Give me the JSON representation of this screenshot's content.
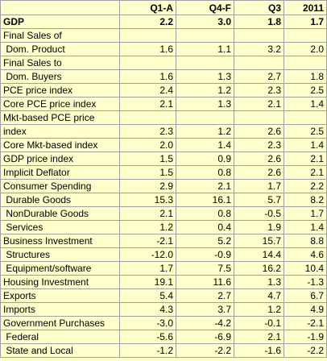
{
  "table": {
    "columns": [
      "Q1-A",
      "Q4-F",
      "Q3",
      "2011"
    ],
    "rows": [
      {
        "label": "GDP",
        "values": [
          "2.2",
          "3.0",
          "1.8",
          "1.7"
        ]
      },
      {
        "label": "Final Sales of"
      },
      {
        "label": " Dom. Product",
        "values": [
          "1.6",
          "1.1",
          "3.2",
          "2.0"
        ]
      },
      {
        "label": "Final Sales to"
      },
      {
        "label": " Dom. Buyers",
        "values": [
          "1.6",
          "1.3",
          "2.7",
          "1.8"
        ]
      },
      {
        "label": "PCE price index",
        "values": [
          "2.4",
          "1.2",
          "2.3",
          "2.5"
        ]
      },
      {
        "label": "Core PCE price index",
        "values": [
          "2.1",
          "1.3",
          "2.1",
          "1.4"
        ]
      },
      {
        "label": "Mkt-based PCE price"
      },
      {
        "label": "index",
        "values": [
          "2.3",
          "1.2",
          "2.6",
          "2.5"
        ]
      },
      {
        "label": "Core Mkt-based index",
        "values": [
          "2.0",
          "1.4",
          "2.3",
          "1.4"
        ]
      },
      {
        "label": "GDP price index",
        "values": [
          "1.5",
          "0.9",
          "2.6",
          "2.1"
        ]
      },
      {
        "label": "Implicit Deflator",
        "values": [
          "1.5",
          "0.8",
          "2.6",
          "2.1"
        ]
      },
      {
        "label": "Consumer Spending",
        "values": [
          "2.9",
          "2.1",
          "1.7",
          "2.2"
        ]
      },
      {
        "label": " Durable Goods",
        "values": [
          "15.3",
          "16.1",
          "5.7",
          "8.2"
        ]
      },
      {
        "label": " NonDurable Goods",
        "values": [
          "2.1",
          "0.8",
          "-0.5",
          "1.7"
        ]
      },
      {
        "label": " Services",
        "values": [
          "1.2",
          "0.4",
          "1.9",
          "1.4"
        ]
      },
      {
        "label": "Business Investment",
        "values": [
          "-2.1",
          "5.2",
          "15.7",
          "8.8"
        ]
      },
      {
        "label": " Structures",
        "values": [
          "-12.0",
          "-0.9",
          "14.4",
          "4.6"
        ]
      },
      {
        "label": " Equipment/software",
        "values": [
          "1.7",
          "7.5",
          "16.2",
          "10.4"
        ]
      },
      {
        "label": "Housing Investment",
        "values": [
          "19.1",
          "11.6",
          "1.3",
          "-1.3"
        ]
      },
      {
        "label": "Exports",
        "values": [
          "5.4",
          "2.7",
          "4.7",
          "6.7"
        ]
      },
      {
        "label": "Imports",
        "values": [
          "4.3",
          "3.7",
          "1.2",
          "4.9"
        ]
      },
      {
        "label": "Government Purchases",
        "values": [
          "-3.0",
          "-4.2",
          "-0.1",
          "-2.1"
        ]
      },
      {
        "label": " Federal",
        "values": [
          "-5.6",
          "-6.9",
          "2.1",
          "-1.9"
        ]
      },
      {
        "label": " State and Local",
        "values": [
          "-1.2",
          "-2.2",
          "-1.6",
          "-2.2"
        ]
      }
    ]
  }
}
